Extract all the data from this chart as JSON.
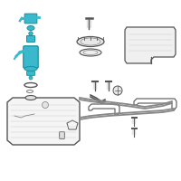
{
  "background_color": "#ffffff",
  "teal_color": "#3ab8cc",
  "teal_dark": "#1a90a0",
  "gray_color": "#888888",
  "dark_gray": "#555555",
  "light_gray": "#cccccc",
  "outline_color": "#555555",
  "figsize": [
    2.0,
    2.0
  ],
  "dpi": 100
}
